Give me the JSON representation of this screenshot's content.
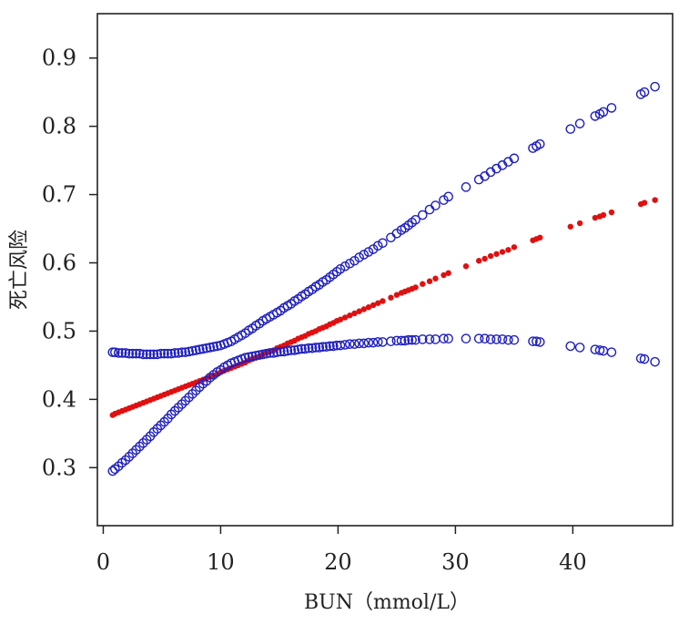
{
  "chart_data": {
    "type": "scatter",
    "title": "",
    "xlabel": "BUN（mmol/L）",
    "ylabel": "死亡风险",
    "xlim": [
      -0.5,
      48.5
    ],
    "ylim": [
      0.215,
      0.965
    ],
    "xticks": [
      0,
      10,
      20,
      30,
      40
    ],
    "xtick_labels": [
      "0",
      "10",
      "20",
      "30",
      "40"
    ],
    "yticks": [
      0.3,
      0.4,
      0.5,
      0.6,
      0.7,
      0.8,
      0.9
    ],
    "ytick_labels": [
      "0.3",
      "0.4",
      "0.5",
      "0.6",
      "0.7",
      "0.8",
      "0.9"
    ],
    "x": [
      0.8,
      1.0,
      1.3,
      1.6,
      1.9,
      2.2,
      2.5,
      2.8,
      3.1,
      3.4,
      3.7,
      4.0,
      4.3,
      4.6,
      4.9,
      5.2,
      5.5,
      5.8,
      6.1,
      6.4,
      6.7,
      7.0,
      7.3,
      7.6,
      7.9,
      8.2,
      8.5,
      8.8,
      9.1,
      9.4,
      9.7,
      10.0,
      10.3,
      10.6,
      10.9,
      11.2,
      11.5,
      11.8,
      12.1,
      12.4,
      12.7,
      13.0,
      13.3,
      13.6,
      13.9,
      14.2,
      14.5,
      14.8,
      15.1,
      15.4,
      15.7,
      16.0,
      16.3,
      16.6,
      16.9,
      17.2,
      17.5,
      17.8,
      18.1,
      18.4,
      18.7,
      19.0,
      19.3,
      19.6,
      19.9,
      20.2,
      20.6,
      21.0,
      21.4,
      21.8,
      22.2,
      22.6,
      23.0,
      23.4,
      23.8,
      24.5,
      25.0,
      25.4,
      25.7,
      26.0,
      26.3,
      26.6,
      27.2,
      27.8,
      28.3,
      29.0,
      29.4,
      30.9,
      32.0,
      32.5,
      33.0,
      33.5,
      34.0,
      34.5,
      35.0,
      36.6,
      36.9,
      37.2,
      39.8,
      40.6,
      41.9,
      42.3,
      42.6,
      43.3,
      45.8,
      46.1,
      47.0
    ],
    "series": [
      {
        "name": "upper",
        "marker": "open-circle",
        "color": "#1f1fbf",
        "values": [
          0.469,
          0.469,
          0.468,
          0.468,
          0.468,
          0.467,
          0.467,
          0.467,
          0.467,
          0.466,
          0.466,
          0.466,
          0.466,
          0.466,
          0.467,
          0.467,
          0.467,
          0.467,
          0.468,
          0.468,
          0.469,
          0.469,
          0.47,
          0.471,
          0.472,
          0.473,
          0.474,
          0.475,
          0.476,
          0.477,
          0.478,
          0.479,
          0.481,
          0.483,
          0.485,
          0.488,
          0.491,
          0.494,
          0.497,
          0.501,
          0.504,
          0.508,
          0.511,
          0.515,
          0.518,
          0.521,
          0.524,
          0.527,
          0.53,
          0.534,
          0.537,
          0.54,
          0.544,
          0.547,
          0.551,
          0.554,
          0.558,
          0.561,
          0.565,
          0.568,
          0.572,
          0.575,
          0.579,
          0.583,
          0.587,
          0.591,
          0.595,
          0.599,
          0.603,
          0.608,
          0.612,
          0.616,
          0.62,
          0.625,
          0.629,
          0.637,
          0.643,
          0.648,
          0.651,
          0.655,
          0.659,
          0.663,
          0.67,
          0.678,
          0.684,
          0.692,
          0.697,
          0.711,
          0.722,
          0.727,
          0.733,
          0.738,
          0.743,
          0.748,
          0.753,
          0.768,
          0.771,
          0.774,
          0.796,
          0.804,
          0.815,
          0.818,
          0.821,
          0.827,
          0.847,
          0.85,
          0.858
        ]
      },
      {
        "name": "estimate",
        "marker": "filled-dot",
        "color": "#e01010",
        "values": [
          0.377,
          0.379,
          0.381,
          0.383,
          0.385,
          0.387,
          0.389,
          0.391,
          0.393,
          0.395,
          0.397,
          0.399,
          0.401,
          0.403,
          0.405,
          0.407,
          0.409,
          0.411,
          0.413,
          0.415,
          0.417,
          0.419,
          0.421,
          0.423,
          0.425,
          0.427,
          0.429,
          0.431,
          0.433,
          0.435,
          0.437,
          0.44,
          0.442,
          0.444,
          0.446,
          0.448,
          0.45,
          0.452,
          0.454,
          0.457,
          0.459,
          0.461,
          0.463,
          0.466,
          0.468,
          0.47,
          0.472,
          0.475,
          0.477,
          0.479,
          0.482,
          0.484,
          0.486,
          0.489,
          0.491,
          0.493,
          0.496,
          0.498,
          0.5,
          0.503,
          0.505,
          0.507,
          0.51,
          0.512,
          0.515,
          0.517,
          0.52,
          0.523,
          0.526,
          0.529,
          0.532,
          0.535,
          0.538,
          0.541,
          0.544,
          0.549,
          0.553,
          0.556,
          0.558,
          0.56,
          0.562,
          0.564,
          0.569,
          0.573,
          0.577,
          0.582,
          0.585,
          0.595,
          0.603,
          0.606,
          0.61,
          0.613,
          0.616,
          0.619,
          0.623,
          0.633,
          0.635,
          0.637,
          0.653,
          0.658,
          0.666,
          0.668,
          0.67,
          0.674,
          0.686,
          0.688,
          0.692
        ]
      },
      {
        "name": "lower",
        "marker": "open-circle",
        "color": "#1f1fbf",
        "values": [
          0.295,
          0.298,
          0.302,
          0.307,
          0.311,
          0.316,
          0.321,
          0.326,
          0.331,
          0.336,
          0.341,
          0.346,
          0.352,
          0.357,
          0.362,
          0.367,
          0.372,
          0.378,
          0.383,
          0.388,
          0.393,
          0.398,
          0.403,
          0.408,
          0.413,
          0.418,
          0.423,
          0.427,
          0.432,
          0.436,
          0.44,
          0.443,
          0.447,
          0.45,
          0.453,
          0.455,
          0.457,
          0.459,
          0.461,
          0.462,
          0.463,
          0.464,
          0.465,
          0.466,
          0.467,
          0.468,
          0.468,
          0.469,
          0.47,
          0.47,
          0.471,
          0.472,
          0.472,
          0.473,
          0.474,
          0.474,
          0.475,
          0.475,
          0.476,
          0.476,
          0.477,
          0.477,
          0.478,
          0.478,
          0.479,
          0.479,
          0.48,
          0.481,
          0.481,
          0.482,
          0.482,
          0.483,
          0.483,
          0.484,
          0.484,
          0.485,
          0.486,
          0.486,
          0.486,
          0.487,
          0.487,
          0.487,
          0.488,
          0.488,
          0.488,
          0.489,
          0.489,
          0.489,
          0.489,
          0.489,
          0.488,
          0.488,
          0.488,
          0.487,
          0.487,
          0.485,
          0.485,
          0.484,
          0.478,
          0.476,
          0.473,
          0.472,
          0.471,
          0.469,
          0.46,
          0.459,
          0.455
        ]
      }
    ]
  }
}
